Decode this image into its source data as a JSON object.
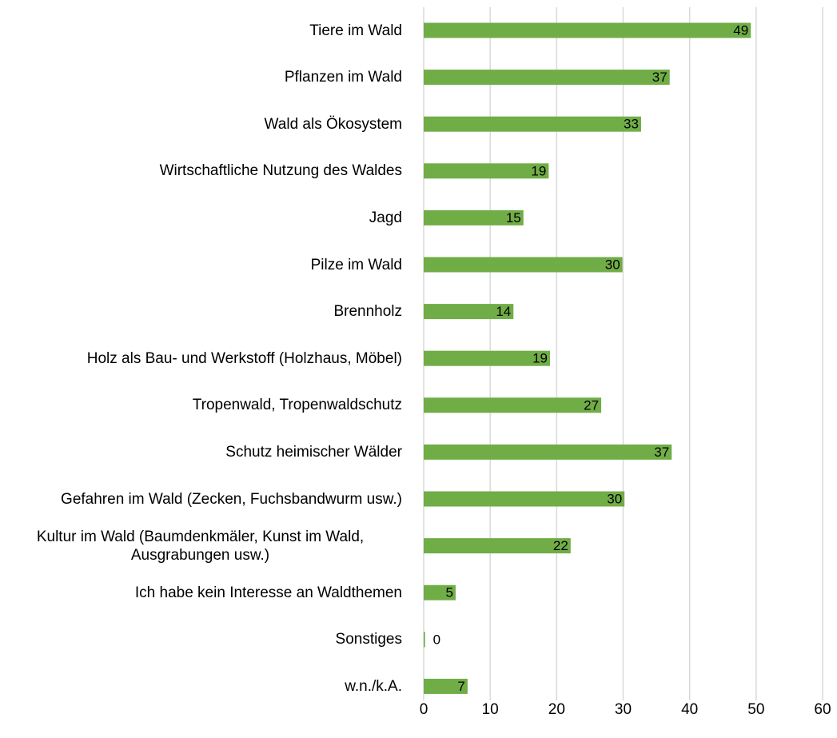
{
  "chart_data": {
    "type": "hbar",
    "categories": [
      "Tiere im Wald",
      "Pflanzen im Wald",
      "Wald als Ökosystem",
      "Wirtschaftliche Nutzung des Waldes",
      "Jagd",
      "Pilze im Wald",
      "Brennholz",
      "Holz als Bau- und Werkstoff (Holzhaus, Möbel)",
      "Tropenwald, Tropenwaldschutz",
      "Schutz heimischer Wälder",
      "Gefahren im Wald (Zecken, Fuchsbandwurm usw.)",
      "Kultur im Wald (Baumdenkmäler, Kunst im Wald, Ausgrabungen usw.)",
      "Ich habe kein Interesse an Waldthemen",
      "Sonstiges",
      "w.n./k.A."
    ],
    "values": [
      49.2,
      37.0,
      32.7,
      18.8,
      15.0,
      29.9,
      13.5,
      19.0,
      26.7,
      37.3,
      30.2,
      22.1,
      4.8,
      0.2,
      6.6
    ],
    "value_labels": [
      "49",
      "37",
      "33",
      "19",
      "15",
      "30",
      "14",
      "19",
      "27",
      "37",
      "30",
      "22",
      "5",
      "0",
      "7"
    ],
    "color": "#70ad47",
    "xlim": [
      0,
      60
    ],
    "xticks": [
      0,
      10,
      20,
      30,
      40,
      50,
      60
    ],
    "grid": true
  }
}
